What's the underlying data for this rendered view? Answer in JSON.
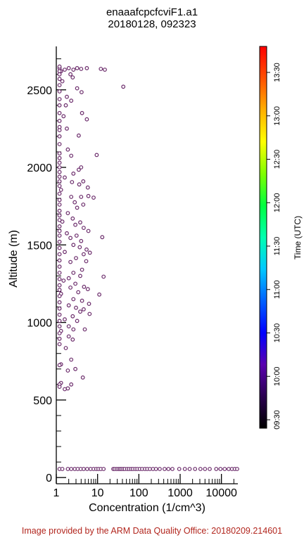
{
  "title_lines": [
    "enaaafcpcfcviF1.a1",
    "20180128, 092323"
  ],
  "footer": "Image provided by the ARM Data Quality Office: 20180209.214601",
  "chart_data": {
    "type": "scatter",
    "title": "enaaafcpcfcviF1.a1 20180128, 092323",
    "xlabel": "Concentration (1/cm^3)",
    "ylabel": "Altitude (m)",
    "x_scale": "log",
    "xlim": [
      1,
      25000
    ],
    "ylim": [
      -40,
      2780
    ],
    "x_ticks": [
      1,
      10,
      100,
      1000,
      10000
    ],
    "x_tick_labels": [
      "1",
      "10",
      "100",
      "1000",
      "10000"
    ],
    "y_ticks": [
      0,
      500,
      1000,
      1500,
      2000,
      2500
    ],
    "y_tick_labels": [
      "0",
      "500",
      "1000",
      "1500",
      "2000",
      "2500"
    ],
    "grid": false,
    "marker": "open circle",
    "marker_color": "#6a2a6a",
    "colorbar": {
      "label": "Time (UTC)",
      "ticks": [
        "09:30",
        "10:00",
        "10:30",
        "11:00",
        "11:30",
        "12:00",
        "12:30",
        "13:00",
        "13:30"
      ],
      "colors": [
        "#000000",
        "#2a0050",
        "#5a00b0",
        "#0000ff",
        "#0060ff",
        "#00c8ff",
        "#00ffb0",
        "#00ff40",
        "#80ff00",
        "#ffff00",
        "#ffb000",
        "#ff5000",
        "#ff0000"
      ]
    },
    "series": [
      {
        "points": [
          [
            1.2,
            2640
          ],
          [
            1.3,
            2620
          ],
          [
            1.6,
            2630
          ],
          [
            2.0,
            2640
          ],
          [
            2.6,
            2630
          ],
          [
            3.2,
            2640
          ],
          [
            4.0,
            2635
          ],
          [
            5.5,
            2640
          ],
          [
            12,
            2635
          ],
          [
            15,
            2630
          ],
          [
            2.2,
            2600
          ],
          [
            2.5,
            2580
          ],
          [
            1.4,
            2555
          ],
          [
            3.2,
            2510
          ],
          [
            4.1,
            2485
          ],
          [
            1.8,
            2455
          ],
          [
            2.3,
            2430
          ],
          [
            4.2,
            2350
          ],
          [
            5.5,
            2310
          ],
          [
            3.5,
            2205
          ],
          [
            42,
            2520
          ],
          [
            1.7,
            2400
          ],
          [
            1.5,
            2330
          ],
          [
            1.8,
            2250
          ],
          [
            1.2,
            2240
          ],
          [
            1.9,
            2115
          ],
          [
            2.3,
            2075
          ],
          [
            9.5,
            2080
          ],
          [
            1.2,
            2000
          ],
          [
            3.5,
            1985
          ],
          [
            4.0,
            2000
          ],
          [
            2.6,
            1960
          ],
          [
            1.6,
            1935
          ],
          [
            2.4,
            1905
          ],
          [
            4.5,
            1910
          ],
          [
            5.8,
            1870
          ],
          [
            3.6,
            1890
          ],
          [
            1.3,
            1855
          ],
          [
            2.3,
            1810
          ],
          [
            4.0,
            1810
          ],
          [
            6.0,
            1815
          ],
          [
            8.0,
            1805
          ],
          [
            2.8,
            1775
          ],
          [
            4.5,
            1760
          ],
          [
            3.2,
            1740
          ],
          [
            1.9,
            1705
          ],
          [
            2.5,
            1670
          ],
          [
            1.4,
            1650
          ],
          [
            3.8,
            1645
          ],
          [
            2.9,
            1630
          ],
          [
            4.6,
            1610
          ],
          [
            6.0,
            1590
          ],
          [
            1.8,
            1575
          ],
          [
            3.1,
            1560
          ],
          [
            2.2,
            1545
          ],
          [
            4.0,
            1525
          ],
          [
            13,
            1550
          ],
          [
            2.6,
            1500
          ],
          [
            3.7,
            1485
          ],
          [
            5.4,
            1470
          ],
          [
            6.5,
            1450
          ],
          [
            1.6,
            1455
          ],
          [
            4.6,
            1440
          ],
          [
            3.0,
            1415
          ],
          [
            2.2,
            1390
          ],
          [
            5.3,
            1395
          ],
          [
            4.2,
            1340
          ],
          [
            2.6,
            1320
          ],
          [
            3.8,
            1300
          ],
          [
            2.0,
            1285
          ],
          [
            14,
            1295
          ],
          [
            1.5,
            1270
          ],
          [
            2.9,
            1250
          ],
          [
            4.7,
            1230
          ],
          [
            5.8,
            1215
          ],
          [
            2.2,
            1225
          ],
          [
            3.4,
            1195
          ],
          [
            1.3,
            1185
          ],
          [
            2.6,
            1150
          ],
          [
            4.2,
            1140
          ],
          [
            6.2,
            1120
          ],
          [
            11,
            1180
          ],
          [
            2.0,
            1110
          ],
          [
            3.0,
            1095
          ],
          [
            4.6,
            1085
          ],
          [
            3.8,
            1070
          ],
          [
            6.4,
            1055
          ],
          [
            2.5,
            1040
          ],
          [
            1.6,
            1020
          ],
          [
            3.2,
            1010
          ],
          [
            2.0,
            975
          ],
          [
            2.6,
            955
          ],
          [
            4.9,
            955
          ],
          [
            1.3,
            945
          ],
          [
            2.0,
            910
          ],
          [
            2.5,
            890
          ],
          [
            1.7,
            835
          ],
          [
            2.3,
            760
          ],
          [
            1.3,
            730
          ],
          [
            2.9,
            700
          ],
          [
            1.9,
            690
          ],
          [
            4.4,
            645
          ],
          [
            1.3,
            610
          ],
          [
            2.3,
            600
          ],
          [
            1.9,
            575
          ],
          [
            1.6,
            570
          ],
          [
            1.2,
            2650
          ],
          [
            1.2,
            2620
          ],
          [
            1.2,
            2600
          ],
          [
            1.2,
            2570
          ],
          [
            1.2,
            2530
          ],
          [
            1.2,
            2490
          ],
          [
            1.2,
            2440
          ],
          [
            1.2,
            2400
          ],
          [
            1.2,
            2350
          ],
          [
            1.2,
            2300
          ],
          [
            1.2,
            2260
          ],
          [
            1.2,
            2200
          ],
          [
            1.2,
            2150
          ],
          [
            1.2,
            2090
          ],
          [
            1.2,
            2060
          ],
          [
            1.2,
            2030
          ],
          [
            1.2,
            1970
          ],
          [
            1.2,
            1940
          ],
          [
            1.2,
            1910
          ],
          [
            1.2,
            1880
          ],
          [
            1.2,
            1830
          ],
          [
            1.2,
            1790
          ],
          [
            1.2,
            1760
          ],
          [
            1.2,
            1720
          ],
          [
            1.2,
            1690
          ],
          [
            1.2,
            1660
          ],
          [
            1.2,
            1620
          ],
          [
            1.2,
            1590
          ],
          [
            1.2,
            1560
          ],
          [
            1.2,
            1520
          ],
          [
            1.2,
            1480
          ],
          [
            1.2,
            1440
          ],
          [
            1.2,
            1400
          ],
          [
            1.2,
            1360
          ],
          [
            1.2,
            1320
          ],
          [
            1.2,
            1280
          ],
          [
            1.2,
            1240
          ],
          [
            1.2,
            1210
          ],
          [
            1.2,
            1170
          ],
          [
            1.2,
            1130
          ],
          [
            1.2,
            1090
          ],
          [
            1.2,
            1050
          ],
          [
            1.2,
            1010
          ],
          [
            1.2,
            975
          ],
          [
            1.2,
            930
          ],
          [
            1.2,
            895
          ],
          [
            1.2,
            860
          ],
          [
            1.2,
            725
          ],
          [
            1.2,
            600
          ],
          [
            1.2,
            585
          ],
          [
            1.2,
            55
          ],
          [
            1.4,
            55
          ],
          [
            1.9,
            55
          ],
          [
            2.3,
            55
          ],
          [
            2.8,
            55
          ],
          [
            3.3,
            55
          ],
          [
            3.9,
            55
          ],
          [
            4.6,
            55
          ],
          [
            5.6,
            55
          ],
          [
            6.8,
            55
          ],
          [
            8.0,
            55
          ],
          [
            9.3,
            55
          ],
          [
            10.5,
            55
          ],
          [
            12,
            55
          ],
          [
            14,
            55
          ],
          [
            24,
            55
          ],
          [
            26,
            55
          ],
          [
            29,
            55
          ],
          [
            32,
            55
          ],
          [
            35,
            55
          ],
          [
            38,
            55
          ],
          [
            42,
            55
          ],
          [
            46,
            55
          ],
          [
            52,
            55
          ],
          [
            58,
            55
          ],
          [
            65,
            55
          ],
          [
            72,
            55
          ],
          [
            82,
            55
          ],
          [
            92,
            55
          ],
          [
            105,
            55
          ],
          [
            120,
            55
          ],
          [
            140,
            55
          ],
          [
            160,
            55
          ],
          [
            185,
            55
          ],
          [
            220,
            55
          ],
          [
            260,
            55
          ],
          [
            320,
            55
          ],
          [
            420,
            55
          ],
          [
            520,
            55
          ],
          [
            650,
            55
          ],
          [
            950,
            55
          ],
          [
            1300,
            55
          ],
          [
            1700,
            55
          ],
          [
            2300,
            55
          ],
          [
            3100,
            55
          ],
          [
            4000,
            55
          ],
          [
            5200,
            55
          ],
          [
            7500,
            55
          ],
          [
            9500,
            55
          ],
          [
            12000,
            55
          ],
          [
            15000,
            55
          ],
          [
            18000,
            55
          ],
          [
            21000,
            55
          ],
          [
            24000,
            55
          ]
        ]
      }
    ]
  }
}
